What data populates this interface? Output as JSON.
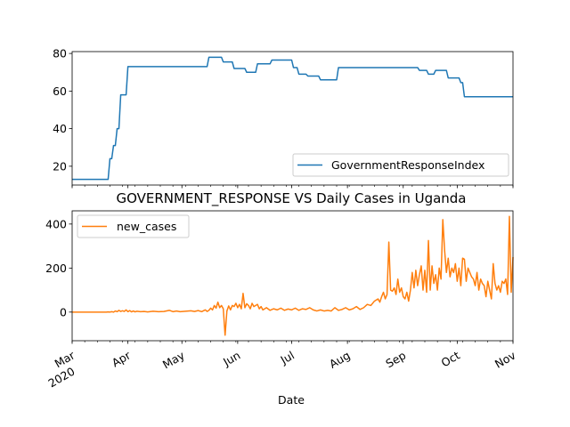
{
  "figure": {
    "xlabel": "Date",
    "x_tick_labels": [
      {
        "date": "2020-03-01",
        "label": "Mar",
        "sublabel": "2020"
      },
      {
        "date": "2020-04-01",
        "label": "Apr",
        "sublabel": ""
      },
      {
        "date": "2020-05-01",
        "label": "May",
        "sublabel": ""
      },
      {
        "date": "2020-06-01",
        "label": "Jun",
        "sublabel": ""
      },
      {
        "date": "2020-07-01",
        "label": "Jul",
        "sublabel": ""
      },
      {
        "date": "2020-08-01",
        "label": "Aug",
        "sublabel": ""
      },
      {
        "date": "2020-09-01",
        "label": "Sep",
        "sublabel": ""
      },
      {
        "date": "2020-10-01",
        "label": "Oct",
        "sublabel": ""
      },
      {
        "date": "2020-11-01",
        "label": "Nov",
        "sublabel": ""
      }
    ],
    "xlim": [
      "2020-03-01",
      "2020-11-01"
    ],
    "colors": {
      "government_response": "#1f77b4",
      "new_cases": "#ff7f0e"
    }
  },
  "chart_data": [
    {
      "type": "line",
      "title": "",
      "xlabel": "",
      "ylabel": "",
      "ylim": [
        10,
        81
      ],
      "yticks": [
        20,
        40,
        60,
        80
      ],
      "grid": false,
      "legend": "bottom-right",
      "series": [
        {
          "name": "GovernmentResponseIndex",
          "points": [
            [
              "2020-03-01",
              13
            ],
            [
              "2020-03-21",
              13
            ],
            [
              "2020-03-22",
              24
            ],
            [
              "2020-03-23",
              24
            ],
            [
              "2020-03-24",
              31
            ],
            [
              "2020-03-25",
              31
            ],
            [
              "2020-03-26",
              40
            ],
            [
              "2020-03-27",
              40
            ],
            [
              "2020-03-28",
              58
            ],
            [
              "2020-03-31",
              58
            ],
            [
              "2020-04-01",
              73
            ],
            [
              "2020-05-15",
              73
            ],
            [
              "2020-05-16",
              78
            ],
            [
              "2020-05-23",
              78
            ],
            [
              "2020-05-24",
              75.5
            ],
            [
              "2020-05-29",
              75.5
            ],
            [
              "2020-05-30",
              72
            ],
            [
              "2020-06-05",
              72
            ],
            [
              "2020-06-06",
              70
            ],
            [
              "2020-06-11",
              70
            ],
            [
              "2020-06-12",
              74.5
            ],
            [
              "2020-06-19",
              74.5
            ],
            [
              "2020-06-20",
              76.5
            ],
            [
              "2020-06-28",
              76.5
            ],
            [
              "2020-06-29",
              76.5
            ],
            [
              "2020-07-01",
              76.5
            ],
            [
              "2020-07-02",
              72.5
            ],
            [
              "2020-07-04",
              72.5
            ],
            [
              "2020-07-05",
              69
            ],
            [
              "2020-07-09",
              69
            ],
            [
              "2020-07-10",
              68
            ],
            [
              "2020-07-16",
              68
            ],
            [
              "2020-07-17",
              66
            ],
            [
              "2020-07-26",
              66
            ],
            [
              "2020-07-27",
              72.5
            ],
            [
              "2020-09-09",
              72.5
            ],
            [
              "2020-09-10",
              71
            ],
            [
              "2020-09-14",
              71
            ],
            [
              "2020-09-15",
              69
            ],
            [
              "2020-09-18",
              69
            ],
            [
              "2020-09-19",
              71
            ],
            [
              "2020-09-25",
              71
            ],
            [
              "2020-09-26",
              67
            ],
            [
              "2020-10-02",
              67
            ],
            [
              "2020-10-03",
              64.5
            ],
            [
              "2020-10-04",
              64.5
            ],
            [
              "2020-10-05",
              57
            ],
            [
              "2020-11-01",
              57
            ]
          ]
        }
      ]
    },
    {
      "type": "line",
      "title": "GOVERNMENT_RESPONSE VS Daily Cases in Uganda",
      "xlabel": "Date",
      "ylabel": "",
      "ylim": [
        -130,
        460
      ],
      "yticks": [
        0,
        200,
        400
      ],
      "grid": false,
      "legend": "top-left",
      "series": [
        {
          "name": "new_cases",
          "points": [
            [
              "2020-03-01",
              0
            ],
            [
              "2020-03-20",
              0
            ],
            [
              "2020-03-21",
              1
            ],
            [
              "2020-03-22",
              0
            ],
            [
              "2020-03-23",
              2
            ],
            [
              "2020-03-24",
              0
            ],
            [
              "2020-03-25",
              5
            ],
            [
              "2020-03-26",
              2
            ],
            [
              "2020-03-27",
              8
            ],
            [
              "2020-03-28",
              3
            ],
            [
              "2020-03-29",
              6
            ],
            [
              "2020-03-30",
              3
            ],
            [
              "2020-03-31",
              10
            ],
            [
              "2020-04-01",
              2
            ],
            [
              "2020-04-02",
              7
            ],
            [
              "2020-04-03",
              1
            ],
            [
              "2020-04-04",
              5
            ],
            [
              "2020-04-05",
              1
            ],
            [
              "2020-04-06",
              4
            ],
            [
              "2020-04-08",
              2
            ],
            [
              "2020-04-10",
              3
            ],
            [
              "2020-04-12",
              1
            ],
            [
              "2020-04-15",
              4
            ],
            [
              "2020-04-18",
              2
            ],
            [
              "2020-04-21",
              3
            ],
            [
              "2020-04-24",
              8
            ],
            [
              "2020-04-26",
              2
            ],
            [
              "2020-04-28",
              5
            ],
            [
              "2020-04-30",
              2
            ],
            [
              "2020-05-03",
              4
            ],
            [
              "2020-05-06",
              6
            ],
            [
              "2020-05-08",
              3
            ],
            [
              "2020-05-10",
              7
            ],
            [
              "2020-05-12",
              2
            ],
            [
              "2020-05-14",
              10
            ],
            [
              "2020-05-15",
              3
            ],
            [
              "2020-05-16",
              8
            ],
            [
              "2020-05-17",
              18
            ],
            [
              "2020-05-18",
              10
            ],
            [
              "2020-05-19",
              30
            ],
            [
              "2020-05-20",
              18
            ],
            [
              "2020-05-21",
              45
            ],
            [
              "2020-05-22",
              20
            ],
            [
              "2020-05-23",
              30
            ],
            [
              "2020-05-24",
              15
            ],
            [
              "2020-05-25",
              -105
            ],
            [
              "2020-05-26",
              5
            ],
            [
              "2020-05-27",
              28
            ],
            [
              "2020-05-28",
              10
            ],
            [
              "2020-05-29",
              30
            ],
            [
              "2020-05-30",
              25
            ],
            [
              "2020-05-31",
              40
            ],
            [
              "2020-06-01",
              20
            ],
            [
              "2020-06-02",
              35
            ],
            [
              "2020-06-03",
              15
            ],
            [
              "2020-06-04",
              85
            ],
            [
              "2020-06-05",
              20
            ],
            [
              "2020-06-06",
              38
            ],
            [
              "2020-06-07",
              30
            ],
            [
              "2020-06-08",
              15
            ],
            [
              "2020-06-09",
              40
            ],
            [
              "2020-06-10",
              25
            ],
            [
              "2020-06-11",
              30
            ],
            [
              "2020-06-12",
              35
            ],
            [
              "2020-06-13",
              15
            ],
            [
              "2020-06-14",
              25
            ],
            [
              "2020-06-15",
              10
            ],
            [
              "2020-06-17",
              20
            ],
            [
              "2020-06-19",
              8
            ],
            [
              "2020-06-21",
              15
            ],
            [
              "2020-06-23",
              10
            ],
            [
              "2020-06-25",
              18
            ],
            [
              "2020-06-27",
              8
            ],
            [
              "2020-06-29",
              14
            ],
            [
              "2020-07-01",
              10
            ],
            [
              "2020-07-03",
              18
            ],
            [
              "2020-07-05",
              8
            ],
            [
              "2020-07-07",
              15
            ],
            [
              "2020-07-09",
              12
            ],
            [
              "2020-07-11",
              20
            ],
            [
              "2020-07-13",
              10
            ],
            [
              "2020-07-15",
              5
            ],
            [
              "2020-07-17",
              10
            ],
            [
              "2020-07-19",
              5
            ],
            [
              "2020-07-21",
              8
            ],
            [
              "2020-07-23",
              5
            ],
            [
              "2020-07-25",
              20
            ],
            [
              "2020-07-27",
              8
            ],
            [
              "2020-07-29",
              12
            ],
            [
              "2020-07-31",
              20
            ],
            [
              "2020-08-02",
              10
            ],
            [
              "2020-08-04",
              15
            ],
            [
              "2020-08-06",
              25
            ],
            [
              "2020-08-08",
              12
            ],
            [
              "2020-08-10",
              20
            ],
            [
              "2020-08-12",
              35
            ],
            [
              "2020-08-14",
              30
            ],
            [
              "2020-08-16",
              50
            ],
            [
              "2020-08-18",
              60
            ],
            [
              "2020-08-19",
              45
            ],
            [
              "2020-08-20",
              70
            ],
            [
              "2020-08-21",
              90
            ],
            [
              "2020-08-22",
              60
            ],
            [
              "2020-08-23",
              80
            ],
            [
              "2020-08-24",
              318
            ],
            [
              "2020-08-25",
              100
            ],
            [
              "2020-08-26",
              95
            ],
            [
              "2020-08-27",
              110
            ],
            [
              "2020-08-28",
              80
            ],
            [
              "2020-08-29",
              150
            ],
            [
              "2020-08-30",
              90
            ],
            [
              "2020-08-31",
              110
            ],
            [
              "2020-09-01",
              70
            ],
            [
              "2020-09-02",
              60
            ],
            [
              "2020-09-03",
              90
            ],
            [
              "2020-09-04",
              50
            ],
            [
              "2020-09-05",
              100
            ],
            [
              "2020-09-06",
              180
            ],
            [
              "2020-09-07",
              110
            ],
            [
              "2020-09-08",
              190
            ],
            [
              "2020-09-09",
              120
            ],
            [
              "2020-09-10",
              170
            ],
            [
              "2020-09-11",
              210
            ],
            [
              "2020-09-12",
              100
            ],
            [
              "2020-09-13",
              190
            ],
            [
              "2020-09-14",
              90
            ],
            [
              "2020-09-15",
              325
            ],
            [
              "2020-09-16",
              100
            ],
            [
              "2020-09-17",
              210
            ],
            [
              "2020-09-18",
              130
            ],
            [
              "2020-09-19",
              170
            ],
            [
              "2020-09-20",
              100
            ],
            [
              "2020-09-21",
              200
            ],
            [
              "2020-09-22",
              150
            ],
            [
              "2020-09-23",
              420
            ],
            [
              "2020-09-24",
              280
            ],
            [
              "2020-09-25",
              180
            ],
            [
              "2020-09-26",
              245
            ],
            [
              "2020-09-27",
              160
            ],
            [
              "2020-09-28",
              200
            ],
            [
              "2020-09-29",
              180
            ],
            [
              "2020-09-30",
              220
            ],
            [
              "2020-10-01",
              140
            ],
            [
              "2020-10-02",
              200
            ],
            [
              "2020-10-03",
              120
            ],
            [
              "2020-10-04",
              245
            ],
            [
              "2020-10-05",
              240
            ],
            [
              "2020-10-06",
              140
            ],
            [
              "2020-10-07",
              200
            ],
            [
              "2020-10-08",
              180
            ],
            [
              "2020-10-09",
              160
            ],
            [
              "2020-10-10",
              150
            ],
            [
              "2020-10-11",
              120
            ],
            [
              "2020-10-12",
              180
            ],
            [
              "2020-10-13",
              100
            ],
            [
              "2020-10-14",
              150
            ],
            [
              "2020-10-15",
              130
            ],
            [
              "2020-10-16",
              120
            ],
            [
              "2020-10-17",
              70
            ],
            [
              "2020-10-18",
              140
            ],
            [
              "2020-10-19",
              100
            ],
            [
              "2020-10-20",
              60
            ],
            [
              "2020-10-21",
              220
            ],
            [
              "2020-10-22",
              130
            ],
            [
              "2020-10-23",
              100
            ],
            [
              "2020-10-24",
              120
            ],
            [
              "2020-10-25",
              90
            ],
            [
              "2020-10-26",
              140
            ],
            [
              "2020-10-27",
              130
            ],
            [
              "2020-10-28",
              150
            ],
            [
              "2020-10-29",
              80
            ],
            [
              "2020-10-30",
              435
            ],
            [
              "2020-10-31",
              90
            ],
            [
              "2020-11-01",
              250
            ]
          ]
        }
      ]
    }
  ]
}
